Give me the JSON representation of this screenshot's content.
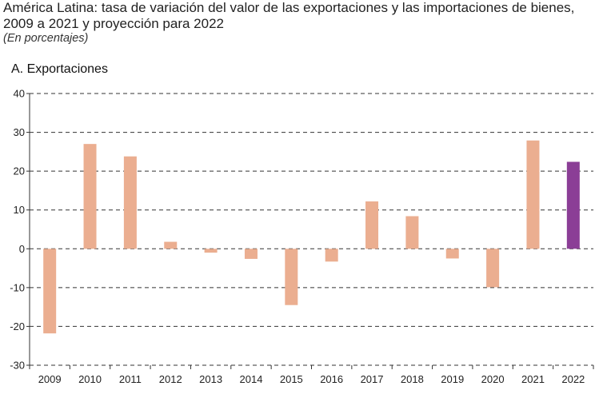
{
  "header": {
    "title": "América Latina: tasa de variación del valor de las exportaciones y las importaciones de bienes, 2009 a 2021 y proyección para 2022",
    "subtitle": "(En porcentajes)",
    "panel_title": "A. Exportaciones"
  },
  "colors": {
    "historical_bar": "#EBAE90",
    "projection_bar": "#8B3E96",
    "gridline": "#333333",
    "axis": "#333333"
  },
  "chart_data": {
    "type": "bar",
    "title": "A. Exportaciones",
    "xlabel": "",
    "ylabel": "",
    "ylim": [
      -30,
      40
    ],
    "yticks": [
      40,
      30,
      20,
      10,
      0,
      -10,
      -20,
      -30
    ],
    "grid": "horizontal dashed",
    "categories": [
      "2009",
      "2010",
      "2011",
      "2012",
      "2013",
      "2014",
      "2015",
      "2016",
      "2017",
      "2018",
      "2019",
      "2020",
      "2021",
      "2022"
    ],
    "values": [
      -21.8,
      27.0,
      23.8,
      1.8,
      -1.0,
      -2.6,
      -14.5,
      -3.3,
      12.2,
      8.4,
      -2.5,
      -9.9,
      27.9,
      22.4
    ],
    "highlight_last_category": true
  }
}
